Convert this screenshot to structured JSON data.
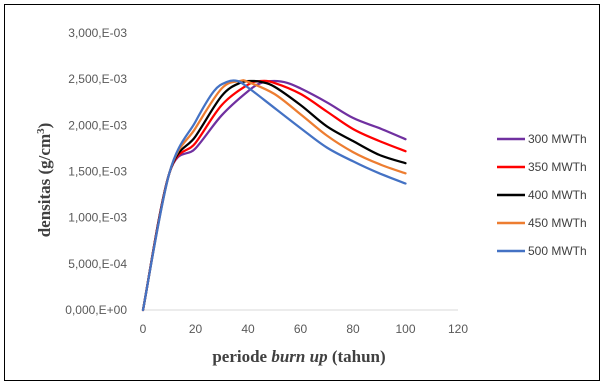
{
  "chart_data": {
    "type": "line",
    "title": "",
    "xlabel_parts": [
      "periode ",
      "burn up",
      " (tahun)"
    ],
    "ylabel_parts": [
      "densitas (g/cm",
      "3",
      ")"
    ],
    "xlim": [
      0,
      120
    ],
    "ylim": [
      0,
      0.003
    ],
    "x_ticks": [
      0,
      20,
      40,
      60,
      80,
      100,
      120
    ],
    "x_tick_labels": [
      "0",
      "20",
      "40",
      "60",
      "80",
      "100",
      "120"
    ],
    "y_ticks": [
      0,
      0.0005,
      0.001,
      0.0015,
      0.002,
      0.0025,
      0.003
    ],
    "y_tick_labels": [
      "0,000,E+00",
      "5,000,E-04",
      "1,000,E-03",
      "1,500,E-03",
      "2,000,E-03",
      "2,500,E-03",
      "3,000,E-03"
    ],
    "grid": false,
    "legend_position": "right",
    "series": [
      {
        "name": "300 MWTh",
        "color": "#7030A0",
        "x": [
          0,
          10,
          20,
          30,
          40,
          45,
          50,
          55,
          60,
          70,
          80,
          90,
          100
        ],
        "y": [
          0,
          0.00148,
          0.00175,
          0.00211,
          0.00237,
          0.00246,
          0.00248,
          0.00246,
          0.0024,
          0.00225,
          0.00208,
          0.00197,
          0.00185
        ]
      },
      {
        "name": "350 MWTh",
        "color": "#FF0000",
        "x": [
          0,
          10,
          20,
          30,
          40,
          45,
          50,
          60,
          70,
          80,
          90,
          100
        ],
        "y": [
          0,
          0.00148,
          0.00181,
          0.00222,
          0.00244,
          0.00248,
          0.00246,
          0.00234,
          0.00215,
          0.00196,
          0.00183,
          0.00172
        ]
      },
      {
        "name": "400 MWTh",
        "color": "#000000",
        "x": [
          0,
          10,
          20,
          30,
          37,
          42,
          45,
          50,
          60,
          70,
          80,
          90,
          100
        ],
        "y": [
          0,
          0.00148,
          0.00188,
          0.00232,
          0.00246,
          0.00248,
          0.00247,
          0.00242,
          0.00222,
          0.00199,
          0.00183,
          0.00168,
          0.00159
        ]
      },
      {
        "name": "450 MWTh",
        "color": "#ED7D31",
        "x": [
          0,
          10,
          20,
          30,
          37,
          40,
          50,
          60,
          70,
          80,
          90,
          100
        ],
        "y": [
          0,
          0.00148,
          0.00197,
          0.0024,
          0.00248,
          0.00247,
          0.00234,
          0.00212,
          0.00189,
          0.00171,
          0.00158,
          0.00148
        ]
      },
      {
        "name": "500 MWTh",
        "color": "#4472C4",
        "x": [
          0,
          10,
          20,
          27,
          32,
          36,
          40,
          50,
          60,
          70,
          80,
          90,
          100
        ],
        "y": [
          0,
          0.00148,
          0.00204,
          0.00237,
          0.00247,
          0.00248,
          0.00241,
          0.00219,
          0.00197,
          0.00176,
          0.00161,
          0.00148,
          0.00137
        ]
      }
    ]
  }
}
